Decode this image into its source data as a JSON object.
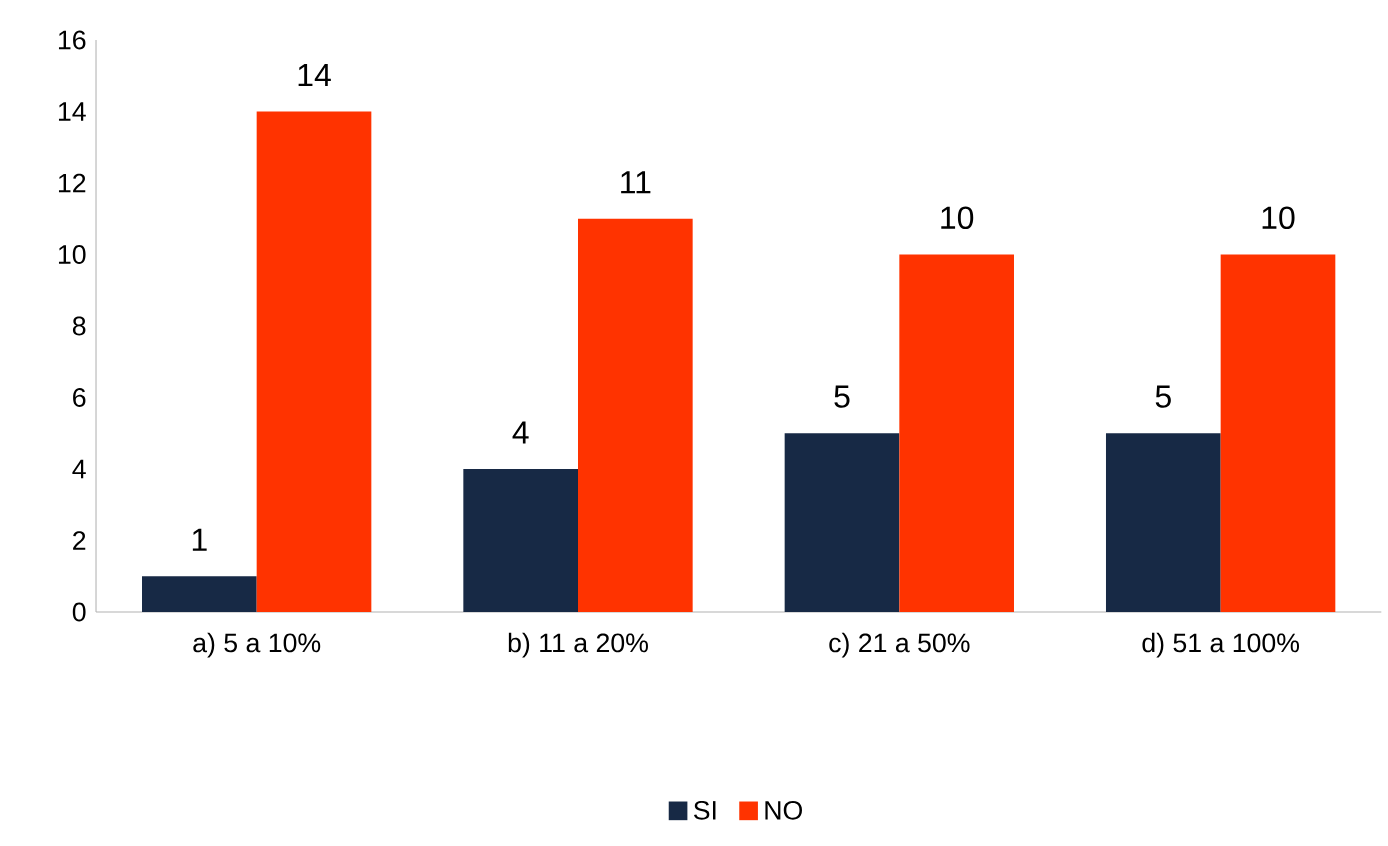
{
  "chart_data": {
    "type": "bar",
    "categories": [
      "a) 5 a 10%",
      "b) 11 a 20%",
      "c) 21 a 50%",
      "d) 51 a 100%"
    ],
    "series": [
      {
        "name": "SI",
        "color": "#172945",
        "values": [
          1,
          4,
          5,
          5
        ]
      },
      {
        "name": "NO",
        "color": "#ff3300",
        "values": [
          14,
          11,
          10,
          10
        ]
      }
    ],
    "ylim": [
      0,
      16
    ],
    "yticks": [
      0,
      2,
      4,
      6,
      8,
      10,
      12,
      14,
      16
    ],
    "grid": false,
    "legend": "bottom",
    "data_labels": true
  }
}
